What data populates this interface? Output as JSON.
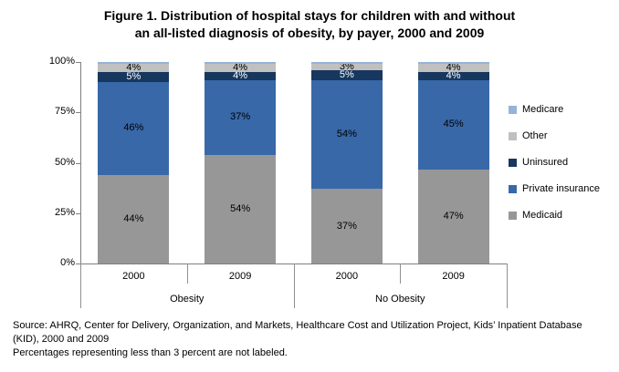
{
  "title": {
    "line1": "Figure 1. Distribution of hospital stays for children with and without",
    "line2": "an all-listed diagnosis of obesity, by payer, 2000 and 2009"
  },
  "colors": {
    "axis_line": "#808080",
    "separator_line": "#909090"
  },
  "chart_data": {
    "type": "bar",
    "stacked": true,
    "title": "Figure 1. Distribution of hospital stays for children with and without an all-listed diagnosis of obesity, by payer, 2000 and 2009",
    "xlabel": "",
    "ylabel": "",
    "ylim": [
      0,
      100
    ],
    "grid": false,
    "legend_position": "right",
    "yticks": [
      {
        "label": "0%",
        "value": 0
      },
      {
        "label": "25%",
        "value": 25
      },
      {
        "label": "50%",
        "value": 50
      },
      {
        "label": "75%",
        "value": 75
      },
      {
        "label": "100%",
        "value": 100
      }
    ],
    "legend": [
      {
        "label": "Medicare",
        "color": "#95B3D7",
        "label_color": "#000000"
      },
      {
        "label": "Other",
        "color": "#C0C0C0",
        "label_color": "#000000"
      },
      {
        "label": "Uninsured",
        "color": "#17375E",
        "label_color": "#FFFFFF"
      },
      {
        "label": "Private insurance",
        "color": "#3868A8",
        "label_color": "#000000"
      },
      {
        "label": "Medicaid",
        "color": "#979797",
        "label_color": "#000000"
      }
    ],
    "series_order_bottom_to_top": [
      "Medicaid",
      "Private insurance",
      "Uninsured",
      "Other",
      "Medicare"
    ],
    "groups": [
      {
        "label": "Obesity",
        "bars": [
          {
            "category": "2000",
            "segments": [
              {
                "name": "Medicaid",
                "value": 44,
                "label": "44%"
              },
              {
                "name": "Private insurance",
                "value": 46,
                "label": "46%"
              },
              {
                "name": "Uninsured",
                "value": 5,
                "label": "5%"
              },
              {
                "name": "Other",
                "value": 4,
                "label": "4%"
              },
              {
                "name": "Medicare",
                "value": 1,
                "label": ""
              }
            ]
          },
          {
            "category": "2009",
            "segments": [
              {
                "name": "Medicaid",
                "value": 54,
                "label": "54%"
              },
              {
                "name": "Private insurance",
                "value": 37,
                "label": "37%"
              },
              {
                "name": "Uninsured",
                "value": 4,
                "label": "4%"
              },
              {
                "name": "Other",
                "value": 4,
                "label": "4%"
              },
              {
                "name": "Medicare",
                "value": 1,
                "label": ""
              }
            ]
          }
        ]
      },
      {
        "label": "No Obesity",
        "bars": [
          {
            "category": "2000",
            "segments": [
              {
                "name": "Medicaid",
                "value": 37,
                "label": "37%"
              },
              {
                "name": "Private insurance",
                "value": 54,
                "label": "54%"
              },
              {
                "name": "Uninsured",
                "value": 5,
                "label": "5%"
              },
              {
                "name": "Other",
                "value": 3,
                "label": "3%"
              },
              {
                "name": "Medicare",
                "value": 1,
                "label": ""
              }
            ]
          },
          {
            "category": "2009",
            "segments": [
              {
                "name": "Medicaid",
                "value": 47,
                "label": "47%"
              },
              {
                "name": "Private insurance",
                "value": 45,
                "label": "45%"
              },
              {
                "name": "Uninsured",
                "value": 4,
                "label": "4%"
              },
              {
                "name": "Other",
                "value": 4,
                "label": "4%"
              },
              {
                "name": "Medicare",
                "value": 1,
                "label": ""
              }
            ]
          }
        ]
      }
    ]
  },
  "footnotes": {
    "source": "Source: AHRQ, Center for Delivery, Organization, and Markets, Healthcare Cost and Utilization Project, Kids’ Inpatient Database (KID), 2000 and 2009",
    "note": "Percentages representing less than 3 percent are not labeled."
  }
}
